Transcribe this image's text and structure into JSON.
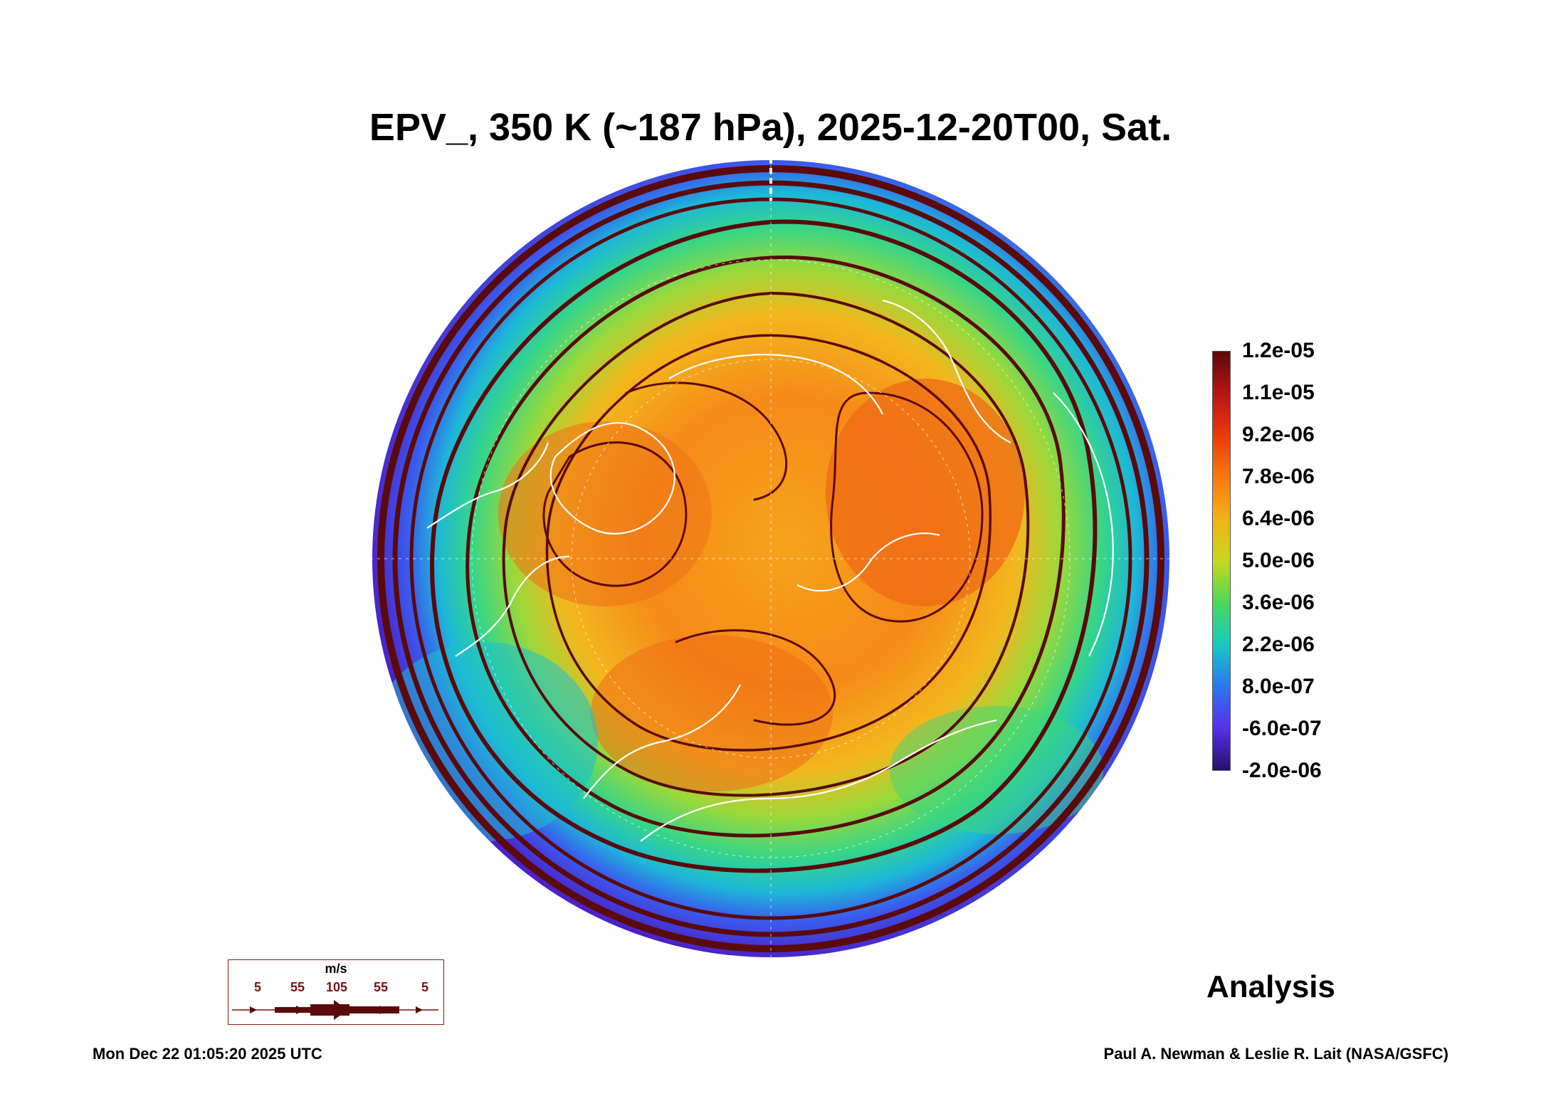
{
  "title": "EPV_, 350 K (~187 hPa), 2025-12-20T00, Sat.",
  "colorbar": {
    "labels": [
      "1.2e-05",
      "1.1e-05",
      "9.2e-06",
      "7.8e-06",
      "6.4e-06",
      "5.0e-06",
      "3.6e-06",
      "2.2e-06",
      "8.0e-07",
      "-6.0e-07",
      "-2.0e-06"
    ],
    "colors_top_to_bottom": [
      "#5a0a0a",
      "#b81414",
      "#e83a0c",
      "#f77a10",
      "#f4b21a",
      "#c7d81e",
      "#4ad95a",
      "#18c9c4",
      "#2a78ef",
      "#5a2fe8",
      "#24106a"
    ]
  },
  "wind_legend": {
    "unit": "m/s",
    "speeds": [
      "5",
      "55",
      "105",
      "55",
      "5"
    ]
  },
  "label": "Analysis",
  "timestamp": "Mon Dec 22 01:05:20 2025 UTC",
  "credit": "Paul A. Newman & Leslie R. Lait (NASA/GSFC)",
  "colors": {
    "streamline": "#5a0a0a",
    "coastline": "#ffffff"
  }
}
